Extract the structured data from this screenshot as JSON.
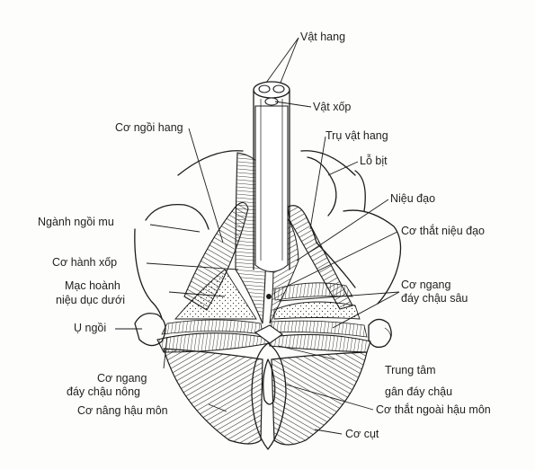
{
  "diagram": {
    "labels": {
      "vat_hang": "Vật hang",
      "vat_xop": "Vật xốp",
      "co_ngoi_hang": "Cơ ngồi hang",
      "tru_vat_hang": "Trụ vật hang",
      "lo_bit": "Lỗ bịt",
      "nieu_dao": "Niệu đạo",
      "nganh_ngoi_mu": "Ngành ngồi mu",
      "co_that_nieu_dao": "Cơ thắt niệu đạo",
      "co_hanh_xop": "Cơ hành xốp",
      "mac_hoanh_1": "Mạc hoành",
      "mac_hoanh_2": "niệu dục dưới",
      "co_ngang_sau_1": "Cơ ngang",
      "co_ngang_sau_2": "đáy chậu sâu",
      "u_ngoi": "Ụ ngồi",
      "co_ngang_nong_1": "Cơ ngang",
      "co_ngang_nong_2": "đáy chậu nông",
      "trung_tam_1": "Trung tâm",
      "trung_tam_2": "gân đáy chậu",
      "co_nang_hau_mon": "Cơ nâng hậu môn",
      "co_that_ngoai": "Cơ thắt ngoài hậu môn",
      "co_cut": "Cơ cụt"
    }
  }
}
